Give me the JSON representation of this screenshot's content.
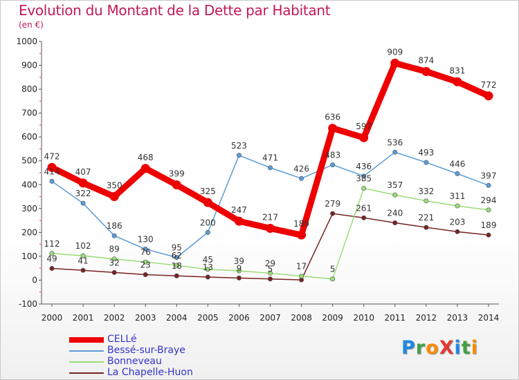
{
  "header": {
    "title": "Evolution du Montant de la Dette par Habitant",
    "unit": "(en €)"
  },
  "logo": {
    "text": "ProXiti",
    "letters": [
      {
        "char": "P",
        "color": "#1e88e5"
      },
      {
        "char": "r",
        "color": "#43a047"
      },
      {
        "char": "o",
        "color": "#fb8c00"
      },
      {
        "char": "X",
        "color": "#e53935"
      },
      {
        "char": "i",
        "color": "#1e88e5"
      },
      {
        "char": "t",
        "color": "#43a047"
      },
      {
        "char": "i",
        "color": "#fb8c00"
      }
    ]
  },
  "chart_data": {
    "type": "line",
    "title": "Evolution du Montant de la Dette par Habitant",
    "ylabel": "(en €)",
    "xlabel": "",
    "ylim": [
      -100,
      1000
    ],
    "yticks": [
      -100,
      0,
      100,
      200,
      300,
      400,
      500,
      600,
      700,
      800,
      900,
      1000
    ],
    "x": [
      2000,
      2001,
      2002,
      2003,
      2004,
      2005,
      2006,
      2007,
      2008,
      2009,
      2010,
      2011,
      2012,
      2013,
      2014
    ],
    "grid": false,
    "legend": "bottom-left",
    "series": [
      {
        "name": "CELLé",
        "color": "#ee0000",
        "values": [
          472,
          407,
          350,
          468,
          399,
          325,
          247,
          217,
          189,
          636,
          597,
          909,
          874,
          831,
          772
        ],
        "labels": [
          "472",
          "407",
          "350",
          "468",
          "399",
          "325",
          "247",
          "217",
          "189",
          "636",
          "597",
          "909",
          "874",
          "831",
          "772"
        ]
      },
      {
        "name": "Bessé-sur-Braye",
        "color": "#5b9bd5",
        "values": [
          414,
          322,
          186,
          130,
          95,
          200,
          523,
          471,
          426,
          483,
          436,
          536,
          493,
          446,
          397
        ],
        "labels": [
          "414",
          "322",
          "186",
          "130",
          "95",
          "200",
          "523",
          "471",
          "426",
          "483",
          "436",
          "536",
          "493",
          "446",
          "397"
        ]
      },
      {
        "name": "Bonneveau",
        "color": "#99dd77",
        "values": [
          112,
          102,
          89,
          76,
          62,
          45,
          39,
          29,
          17,
          5,
          385,
          357,
          332,
          311,
          294
        ],
        "labels": [
          "112",
          "102",
          "89",
          "76",
          "62",
          "45",
          "39",
          "29",
          "17",
          "5",
          "385",
          "357",
          "332",
          "311",
          "294"
        ]
      },
      {
        "name": "La Chapelle-Huon",
        "color": "#772222",
        "values": [
          49,
          41,
          32,
          23,
          18,
          13,
          9,
          5,
          1,
          279,
          261,
          240,
          221,
          203,
          189
        ],
        "labels": [
          "49",
          "41",
          "32",
          "23",
          "18",
          "13",
          "9",
          "5",
          "",
          "279",
          "261",
          "240",
          "221",
          "203",
          "189"
        ]
      }
    ]
  }
}
